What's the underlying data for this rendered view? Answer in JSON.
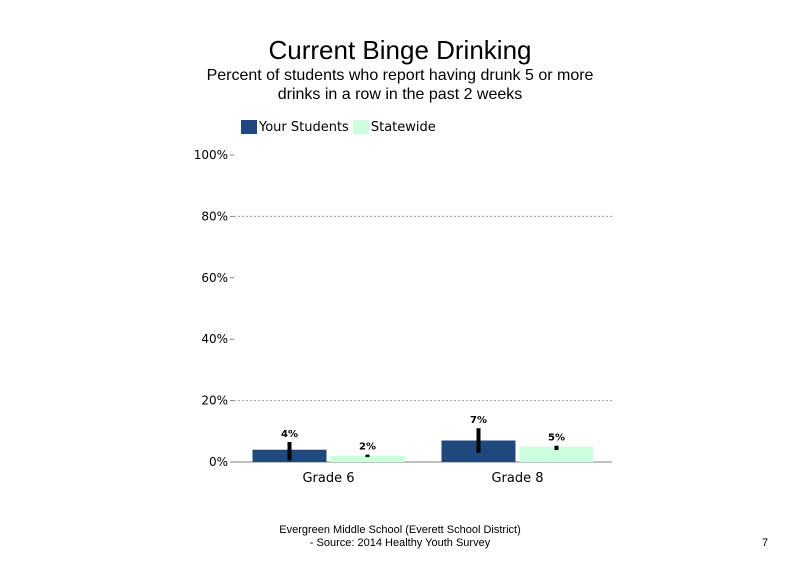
{
  "slide": {
    "footer_line1": "Evergreen Middle School (Everett School District)",
    "footer_line2": "- Source: 2014 Healthy  Youth Survey",
    "page_number": "7"
  },
  "chart_data": {
    "type": "bar",
    "title": "Current Binge Drinking",
    "subtitle": "Percent of students who report having drunk 5 or more drinks in a row in the past 2 weeks",
    "categories": [
      "Grade 6",
      "Grade 8"
    ],
    "series": [
      {
        "name": "Your Students",
        "color": "#1f487c",
        "values": [
          4,
          7
        ],
        "labels": [
          "4%",
          "7%"
        ],
        "error_low": [
          0.5,
          3
        ],
        "error_high": [
          6.5,
          11
        ]
      },
      {
        "name": "Statewide",
        "color": "#ccffdd",
        "values": [
          2,
          5
        ],
        "labels": [
          "2%",
          "5%"
        ],
        "error_low": [
          1.6,
          3.9
        ],
        "error_high": [
          2.4,
          5.3
        ]
      }
    ],
    "ylim": [
      0,
      100
    ],
    "yticks": [
      0,
      20,
      40,
      60,
      80,
      100
    ],
    "ytick_labels": [
      "0%",
      "20%",
      "40%",
      "60%",
      "80%",
      "100%"
    ],
    "gridlines": [
      20,
      80
    ],
    "legend_position": "top-left",
    "xlabel": "",
    "ylabel": ""
  }
}
